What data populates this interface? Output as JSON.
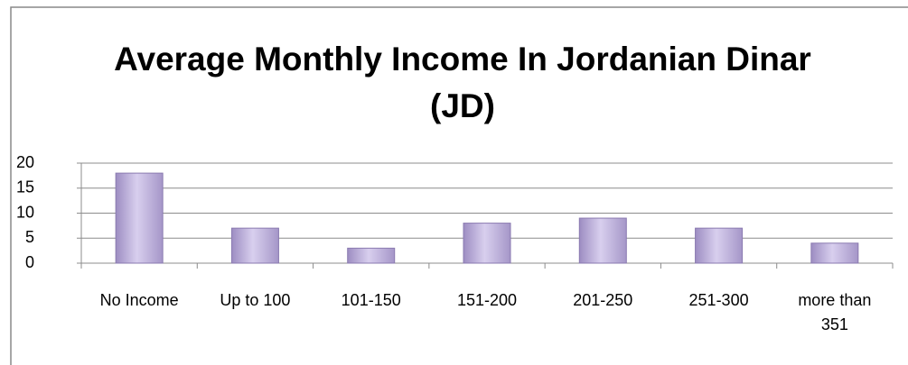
{
  "chart_data": {
    "type": "bar",
    "title": "Average Monthly Income In Jordanian Dinar (JD)",
    "categories": [
      "No Income",
      "Up to 100",
      "101-150",
      "151-200",
      "201-250",
      "251-300",
      "more than 351"
    ],
    "values": [
      18,
      7,
      3,
      8,
      9,
      7,
      4
    ],
    "color": "#b4a5d2",
    "ylim": [
      0,
      20
    ],
    "yticks": [
      0,
      5,
      10,
      15,
      20
    ],
    "grid": true
  }
}
